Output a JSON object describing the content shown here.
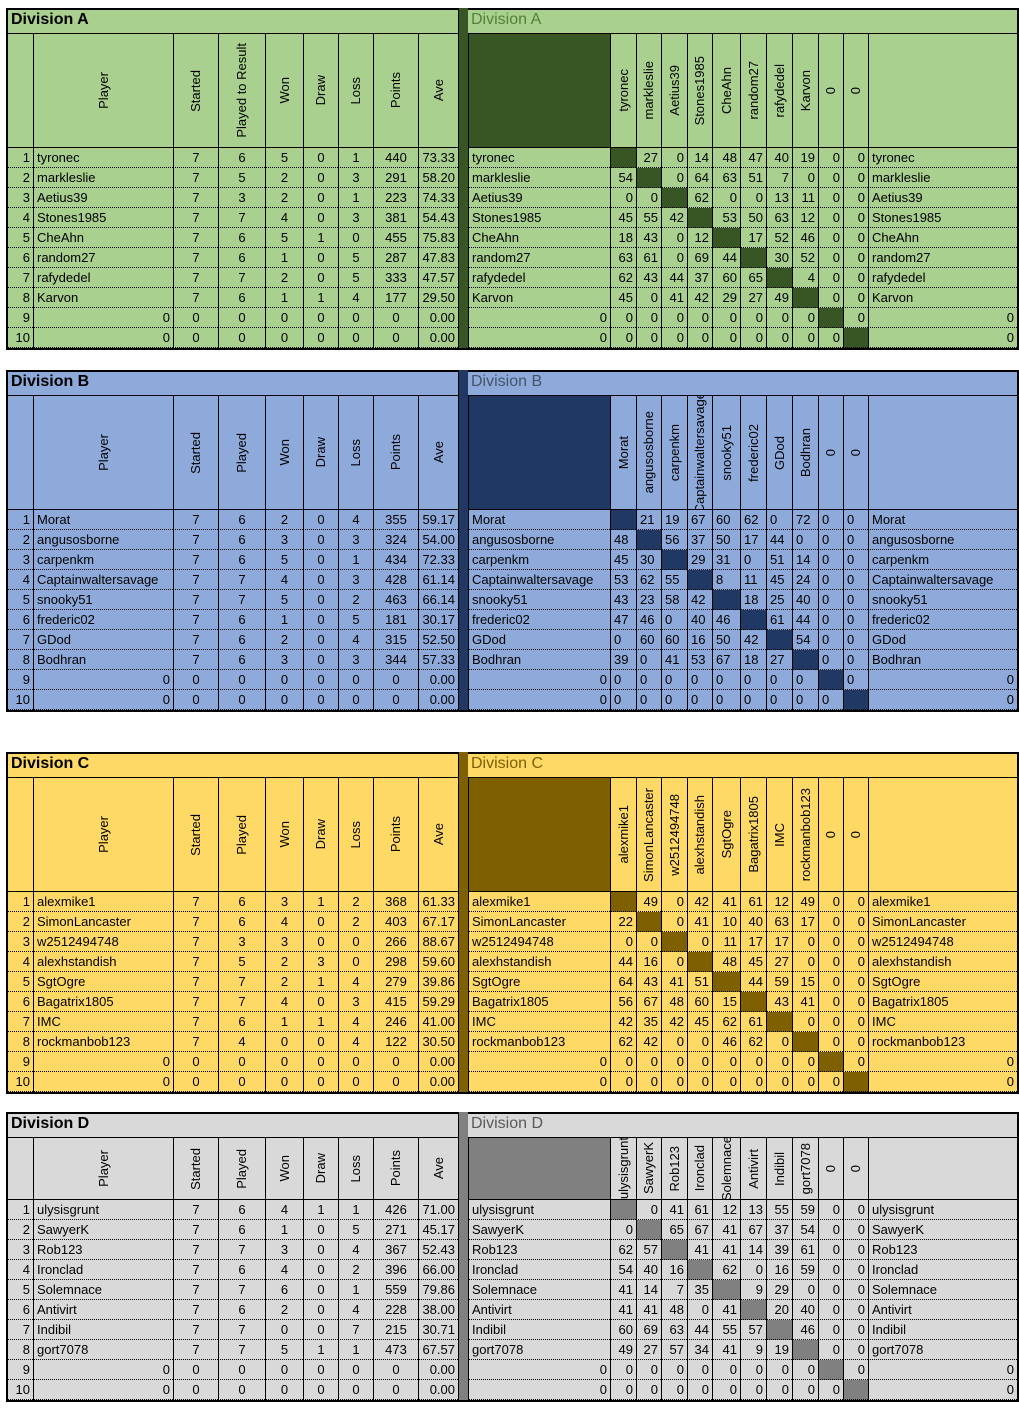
{
  "divisions": [
    {
      "title": "Division A",
      "headers": [
        "Player",
        "Started",
        "Played to Result",
        "Won",
        "Draw",
        "Loss",
        "Points",
        "Ave"
      ],
      "rows": [
        {
          "no": 1,
          "name": "tyronec",
          "stats": [
            7,
            6,
            5,
            0,
            1,
            440,
            "73.33"
          ],
          "cross": [
            null,
            27,
            0,
            14,
            48,
            47,
            40,
            19,
            0,
            0
          ]
        },
        {
          "no": 2,
          "name": "markleslie",
          "stats": [
            7,
            5,
            2,
            0,
            3,
            291,
            "58.20"
          ],
          "cross": [
            54,
            null,
            0,
            64,
            63,
            51,
            7,
            0,
            0,
            0
          ]
        },
        {
          "no": 3,
          "name": "Aetius39",
          "stats": [
            7,
            3,
            2,
            0,
            1,
            223,
            "74.33"
          ],
          "cross": [
            0,
            0,
            null,
            62,
            0,
            0,
            13,
            11,
            0,
            0
          ]
        },
        {
          "no": 4,
          "name": "Stones1985",
          "stats": [
            7,
            7,
            4,
            0,
            3,
            381,
            "54.43"
          ],
          "cross": [
            45,
            55,
            42,
            null,
            53,
            50,
            63,
            12,
            0,
            0
          ]
        },
        {
          "no": 5,
          "name": "CheAhn",
          "stats": [
            7,
            6,
            5,
            1,
            0,
            455,
            "75.83"
          ],
          "cross": [
            18,
            43,
            0,
            12,
            null,
            17,
            52,
            46,
            0,
            0
          ]
        },
        {
          "no": 6,
          "name": "random27",
          "stats": [
            7,
            6,
            1,
            0,
            5,
            287,
            "47.83"
          ],
          "cross": [
            63,
            61,
            0,
            69,
            44,
            null,
            30,
            52,
            0,
            0
          ]
        },
        {
          "no": 7,
          "name": "rafydedel",
          "stats": [
            7,
            7,
            2,
            0,
            5,
            333,
            "47.57"
          ],
          "cross": [
            62,
            43,
            44,
            37,
            60,
            65,
            null,
            4,
            0,
            0
          ]
        },
        {
          "no": 8,
          "name": "Karvon",
          "stats": [
            7,
            6,
            1,
            1,
            4,
            177,
            "29.50"
          ],
          "cross": [
            45,
            0,
            41,
            42,
            29,
            27,
            49,
            null,
            0,
            0
          ]
        },
        {
          "no": 9,
          "name": 0,
          "stats": [
            0,
            0,
            0,
            0,
            0,
            0,
            "0.00"
          ],
          "cross": [
            0,
            0,
            0,
            0,
            0,
            0,
            0,
            0,
            null,
            0
          ]
        },
        {
          "no": 10,
          "name": 0,
          "stats": [
            0,
            0,
            0,
            0,
            0,
            0,
            "0.00"
          ],
          "cross": [
            0,
            0,
            0,
            0,
            0,
            0,
            0,
            0,
            0,
            null
          ]
        }
      ]
    },
    {
      "title": "Division B",
      "headers": [
        "Player",
        "Started",
        "Played",
        "Won",
        "Draw",
        "Loss",
        "Points",
        "Ave"
      ],
      "rows": [
        {
          "no": 1,
          "name": "Morat",
          "stats": [
            7,
            6,
            2,
            0,
            4,
            355,
            "59.17"
          ],
          "cross": [
            null,
            21,
            19,
            67,
            60,
            62,
            0,
            72,
            0,
            0
          ]
        },
        {
          "no": 2,
          "name": "angusosborne",
          "stats": [
            7,
            6,
            3,
            0,
            3,
            324,
            "54.00"
          ],
          "cross": [
            48,
            null,
            56,
            37,
            50,
            17,
            44,
            0,
            0,
            0
          ]
        },
        {
          "no": 3,
          "name": "carpenkm",
          "stats": [
            7,
            6,
            5,
            0,
            1,
            434,
            "72.33"
          ],
          "cross": [
            45,
            30,
            null,
            29,
            31,
            0,
            51,
            14,
            0,
            0
          ]
        },
        {
          "no": 4,
          "name": "Captainwaltersavage",
          "stats": [
            7,
            7,
            4,
            0,
            3,
            428,
            "61.14"
          ],
          "cross": [
            53,
            62,
            55,
            null,
            8,
            11,
            45,
            24,
            0,
            0
          ]
        },
        {
          "no": 5,
          "name": "snooky51",
          "stats": [
            7,
            7,
            5,
            0,
            2,
            463,
            "66.14"
          ],
          "cross": [
            43,
            23,
            58,
            42,
            null,
            18,
            25,
            40,
            0,
            0
          ]
        },
        {
          "no": 6,
          "name": "frederic02",
          "stats": [
            7,
            6,
            1,
            0,
            5,
            181,
            "30.17"
          ],
          "cross": [
            47,
            46,
            0,
            40,
            46,
            null,
            61,
            44,
            0,
            0
          ]
        },
        {
          "no": 7,
          "name": "GDod",
          "stats": [
            7,
            6,
            2,
            0,
            4,
            315,
            "52.50"
          ],
          "cross": [
            0,
            60,
            60,
            16,
            50,
            42,
            null,
            54,
            0,
            0
          ]
        },
        {
          "no": 8,
          "name": "Bodhran",
          "stats": [
            7,
            6,
            3,
            0,
            3,
            344,
            "57.33"
          ],
          "cross": [
            39,
            0,
            41,
            53,
            67,
            18,
            27,
            null,
            0,
            0
          ]
        },
        {
          "no": 9,
          "name": 0,
          "stats": [
            0,
            0,
            0,
            0,
            0,
            0,
            "0.00"
          ],
          "cross": [
            0,
            0,
            0,
            0,
            0,
            0,
            0,
            0,
            null,
            0
          ]
        },
        {
          "no": 10,
          "name": 0,
          "stats": [
            0,
            0,
            0,
            0,
            0,
            0,
            "0.00"
          ],
          "cross": [
            0,
            0,
            0,
            0,
            0,
            0,
            0,
            0,
            0,
            null
          ]
        }
      ]
    },
    {
      "title": "Division C",
      "headers": [
        "Player",
        "Started",
        "Played",
        "Won",
        "Draw",
        "Loss",
        "Points",
        "Ave"
      ],
      "rows": [
        {
          "no": 1,
          "name": "alexmike1",
          "stats": [
            7,
            6,
            3,
            1,
            2,
            368,
            "61.33"
          ],
          "cross": [
            null,
            49,
            0,
            42,
            41,
            61,
            12,
            49,
            0,
            0
          ]
        },
        {
          "no": 2,
          "name": "SimonLancaster",
          "stats": [
            7,
            6,
            4,
            0,
            2,
            403,
            "67.17"
          ],
          "cross": [
            22,
            null,
            0,
            41,
            10,
            40,
            63,
            17,
            0,
            0
          ]
        },
        {
          "no": 3,
          "name": "w2512494748",
          "stats": [
            7,
            3,
            3,
            0,
            0,
            266,
            "88.67"
          ],
          "cross": [
            0,
            0,
            null,
            0,
            11,
            17,
            17,
            0,
            0,
            0
          ]
        },
        {
          "no": 4,
          "name": "alexhstandish",
          "stats": [
            7,
            5,
            2,
            3,
            0,
            298,
            "59.60"
          ],
          "cross": [
            44,
            16,
            0,
            null,
            48,
            45,
            27,
            0,
            0,
            0
          ]
        },
        {
          "no": 5,
          "name": "SgtOgre",
          "stats": [
            7,
            7,
            2,
            1,
            4,
            279,
            "39.86"
          ],
          "cross": [
            64,
            43,
            41,
            51,
            null,
            44,
            59,
            15,
            0,
            0
          ]
        },
        {
          "no": 6,
          "name": "Bagatrix1805",
          "stats": [
            7,
            7,
            4,
            0,
            3,
            415,
            "59.29"
          ],
          "cross": [
            56,
            67,
            48,
            60,
            15,
            null,
            43,
            41,
            0,
            0
          ]
        },
        {
          "no": 7,
          "name": "IMC",
          "stats": [
            7,
            6,
            1,
            1,
            4,
            246,
            "41.00"
          ],
          "cross": [
            42,
            35,
            42,
            45,
            62,
            61,
            null,
            0,
            0,
            0
          ]
        },
        {
          "no": 8,
          "name": "rockmanbob123",
          "stats": [
            7,
            4,
            0,
            0,
            4,
            122,
            "30.50"
          ],
          "cross": [
            62,
            42,
            0,
            0,
            46,
            62,
            0,
            null,
            0,
            0
          ]
        },
        {
          "no": 9,
          "name": 0,
          "stats": [
            0,
            0,
            0,
            0,
            0,
            0,
            "0.00"
          ],
          "cross": [
            0,
            0,
            0,
            0,
            0,
            0,
            0,
            0,
            null,
            0
          ]
        },
        {
          "no": 10,
          "name": 0,
          "stats": [
            0,
            0,
            0,
            0,
            0,
            0,
            "0.00"
          ],
          "cross": [
            0,
            0,
            0,
            0,
            0,
            0,
            0,
            0,
            0,
            null
          ]
        }
      ]
    },
    {
      "title": "Division D",
      "headers": [
        "Player",
        "Started",
        "Played",
        "Won",
        "Draw",
        "Loss",
        "Points",
        "Ave"
      ],
      "rows": [
        {
          "no": 1,
          "name": "ulysisgrunt",
          "stats": [
            7,
            6,
            4,
            1,
            1,
            426,
            "71.00"
          ],
          "cross": [
            null,
            0,
            41,
            61,
            12,
            13,
            55,
            59,
            0,
            0
          ]
        },
        {
          "no": 2,
          "name": "SawyerK",
          "stats": [
            7,
            6,
            1,
            0,
            5,
            271,
            "45.17"
          ],
          "cross": [
            0,
            null,
            65,
            67,
            41,
            67,
            37,
            54,
            0,
            0
          ]
        },
        {
          "no": 3,
          "name": "Rob123",
          "stats": [
            7,
            7,
            3,
            0,
            4,
            367,
            "52.43"
          ],
          "cross": [
            62,
            57,
            null,
            41,
            41,
            14,
            39,
            61,
            0,
            0
          ]
        },
        {
          "no": 4,
          "name": "Ironclad",
          "stats": [
            7,
            6,
            4,
            0,
            2,
            396,
            "66.00"
          ],
          "cross": [
            54,
            40,
            16,
            null,
            62,
            0,
            16,
            59,
            0,
            0
          ]
        },
        {
          "no": 5,
          "name": "Solemnace",
          "stats": [
            7,
            7,
            6,
            0,
            1,
            559,
            "79.86"
          ],
          "cross": [
            41,
            14,
            7,
            35,
            null,
            9,
            29,
            0,
            0,
            0
          ]
        },
        {
          "no": 6,
          "name": "Antivirt",
          "stats": [
            7,
            6,
            2,
            0,
            4,
            228,
            "38.00"
          ],
          "cross": [
            41,
            41,
            48,
            0,
            41,
            null,
            20,
            40,
            0,
            0
          ]
        },
        {
          "no": 7,
          "name": "Indibil",
          "stats": [
            7,
            7,
            0,
            0,
            7,
            215,
            "30.71"
          ],
          "cross": [
            60,
            69,
            63,
            44,
            55,
            57,
            null,
            46,
            0,
            0
          ]
        },
        {
          "no": 8,
          "name": "gort7078",
          "stats": [
            7,
            7,
            5,
            1,
            1,
            473,
            "67.57"
          ],
          "cross": [
            49,
            27,
            57,
            34,
            41,
            9,
            19,
            null,
            0,
            0
          ]
        },
        {
          "no": 9,
          "name": 0,
          "stats": [
            0,
            0,
            0,
            0,
            0,
            0,
            "0.00"
          ],
          "cross": [
            0,
            0,
            0,
            0,
            0,
            0,
            0,
            0,
            null,
            0
          ]
        },
        {
          "no": 10,
          "name": 0,
          "stats": [
            0,
            0,
            0,
            0,
            0,
            0,
            "0.00"
          ],
          "cross": [
            0,
            0,
            0,
            0,
            0,
            0,
            0,
            0,
            0,
            null
          ]
        }
      ]
    }
  ]
}
